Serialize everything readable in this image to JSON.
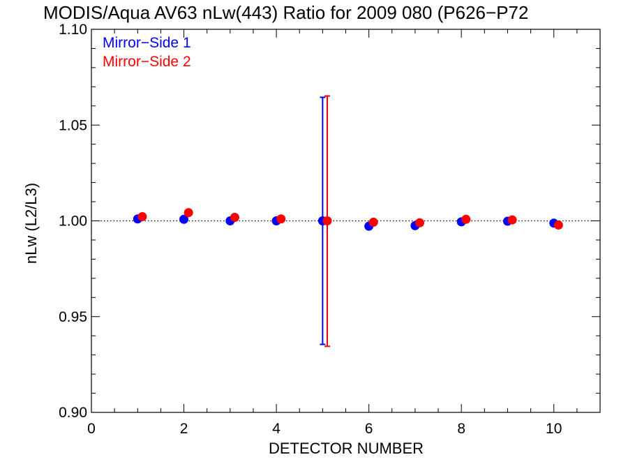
{
  "chart_data": {
    "type": "scatter",
    "title": "MODIS/Aqua AV63 nLw(443) Ratio for 2009 080 (P626−P72",
    "xlabel": "DETECTOR NUMBER",
    "ylabel": "nLw (L2/L3)",
    "xlim": [
      0,
      11
    ],
    "ylim": [
      0.9,
      1.1
    ],
    "x_ticks": [
      0,
      2,
      4,
      6,
      8,
      10
    ],
    "x_tick_labels": [
      "0",
      "2",
      "4",
      "6",
      "8",
      "10"
    ],
    "y_ticks": [
      0.9,
      0.95,
      1.0,
      1.05,
      1.1
    ],
    "y_tick_labels": [
      "0.90",
      "0.95",
      "1.00",
      "1.05",
      "1.10"
    ],
    "reference_line": 1.0,
    "legend_position": "top-left",
    "series": [
      {
        "name": "Mirror−Side 1",
        "color": "#0000ff",
        "x": [
          1,
          2,
          3,
          4,
          5,
          6,
          7,
          8,
          9,
          10
        ],
        "y": [
          1.001,
          1.0008,
          1.0,
          1.0,
          1.0,
          0.9972,
          0.9975,
          0.9995,
          0.9998,
          0.9988
        ],
        "error_bars": [
          {
            "x": 5,
            "low": 0.9355,
            "high": 1.0645
          }
        ]
      },
      {
        "name": "Mirror−Side 2",
        "color": "#ff0000",
        "x": [
          1.1,
          2.1,
          3.1,
          4.1,
          5.1,
          6.1,
          7.1,
          8.1,
          9.1,
          10.1
        ],
        "y": [
          1.0022,
          1.0043,
          1.0018,
          1.001,
          1.0,
          0.9993,
          0.999,
          1.0008,
          1.0005,
          0.9978
        ],
        "error_bars": [
          {
            "x": 5.1,
            "low": 0.9345,
            "high": 1.0652
          }
        ]
      }
    ]
  }
}
